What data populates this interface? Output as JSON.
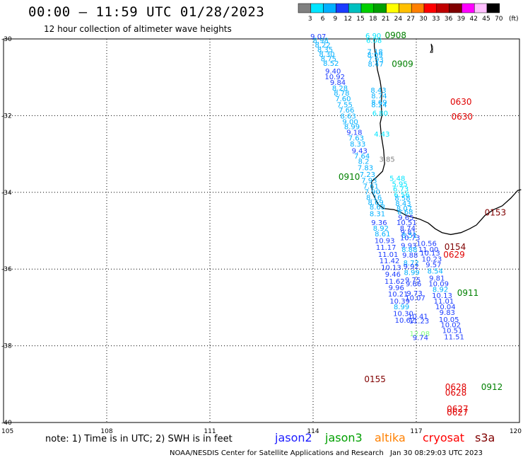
{
  "header": {
    "title": "00:00 – 11:59 UTC 01/28/2023",
    "subtitle": "12 hour collection of altimeter wave heights"
  },
  "legend": {
    "ticks": [
      "3",
      "6",
      "9",
      "12",
      "15",
      "18",
      "21",
      "24",
      "27",
      "30",
      "33",
      "36",
      "39",
      "42",
      "45",
      "70"
    ],
    "unit": "(ft)",
    "colors": [
      "#808080",
      "#00e5ff",
      "#00b0ff",
      "#1c3cff",
      "#00c0c0",
      "#00d000",
      "#00a000",
      "#ffff00",
      "#ffc000",
      "#ff8000",
      "#ff0000",
      "#c00000",
      "#800000",
      "#ff00ff",
      "#ffc0ff",
      "#000000"
    ]
  },
  "axes": {
    "x_labels": [
      "105",
      "108",
      "111",
      "114",
      "117",
      "120"
    ],
    "y_labels": [
      "-30",
      "-32",
      "-34",
      "-36",
      "-38",
      "-40"
    ],
    "lon_range": [
      105,
      120
    ],
    "lat_range": [
      -40,
      -30
    ]
  },
  "footer": {
    "note": "note: 1) Time is in UTC; 2) SWH is in feet",
    "satellites": [
      {
        "name": "jason2",
        "color": "#1c1cff"
      },
      {
        "name": "jason3",
        "color": "#00a000"
      },
      {
        "name": "altika",
        "color": "#ff8000"
      },
      {
        "name": "cryosat",
        "color": "#ff0000"
      },
      {
        "name": "s3a",
        "color": "#800000"
      }
    ],
    "credit": "NOAA/NESDIS Center for Satellite Applications and Research",
    "timestamp": "Jan 30 08:29:03 UTC 2023"
  },
  "time_labels": [
    {
      "text": "0908",
      "lon": 116.4,
      "lat": -29.98,
      "color": "#008000"
    },
    {
      "text": "0909",
      "lon": 116.6,
      "lat": -30.73,
      "color": "#008000"
    },
    {
      "text": "0630",
      "lon": 118.3,
      "lat": -31.72,
      "color": "#e00000"
    },
    {
      "text": "0630",
      "lon": 118.33,
      "lat": -32.1,
      "color": "#e00000"
    },
    {
      "text": "0910",
      "lon": 115.05,
      "lat": -33.67,
      "color": "#008000"
    },
    {
      "text": "0153",
      "lon": 119.3,
      "lat": -34.6,
      "color": "#800000"
    },
    {
      "text": "0154",
      "lon": 118.13,
      "lat": -35.5,
      "color": "#800000"
    },
    {
      "text": "0629",
      "lon": 118.1,
      "lat": -35.7,
      "color": "#e00000"
    },
    {
      "text": "0911",
      "lon": 118.5,
      "lat": -36.7,
      "color": "#008000"
    },
    {
      "text": "0155",
      "lon": 115.8,
      "lat": -38.95,
      "color": "#800000"
    },
    {
      "text": "0912",
      "lon": 119.2,
      "lat": -39.15,
      "color": "#008000"
    },
    {
      "text": "0628",
      "lon": 118.15,
      "lat": -39.15,
      "color": "#e00000"
    },
    {
      "text": "0628",
      "lon": 118.15,
      "lat": -39.3,
      "color": "#e00000"
    },
    {
      "text": "0627",
      "lon": 118.2,
      "lat": -39.72,
      "color": "#e00000"
    },
    {
      "text": "0627",
      "lon": 118.2,
      "lat": -39.82,
      "color": "#e00000"
    }
  ],
  "observations": [
    {
      "v": "9.07",
      "lon": 114.15,
      "lat": -30.0,
      "c": "#1c3cff"
    },
    {
      "v": "8.98",
      "lon": 114.22,
      "lat": -30.1,
      "c": "#00b0ff"
    },
    {
      "v": "8.22",
      "lon": 114.28,
      "lat": -30.22,
      "c": "#00b0ff"
    },
    {
      "v": "8.35",
      "lon": 114.35,
      "lat": -30.34,
      "c": "#00b0ff"
    },
    {
      "v": "8.30",
      "lon": 114.4,
      "lat": -30.46,
      "c": "#00b0ff"
    },
    {
      "v": "8.75",
      "lon": 114.45,
      "lat": -30.58,
      "c": "#00b0ff"
    },
    {
      "v": "8.52",
      "lon": 114.52,
      "lat": -30.7,
      "c": "#00b0ff"
    },
    {
      "v": "9.40",
      "lon": 114.58,
      "lat": -30.9,
      "c": "#1c3cff"
    },
    {
      "v": "10.92",
      "lon": 114.63,
      "lat": -31.05,
      "c": "#1c3cff"
    },
    {
      "v": "9.84",
      "lon": 114.72,
      "lat": -31.2,
      "c": "#1c3cff"
    },
    {
      "v": "8.28",
      "lon": 114.78,
      "lat": -31.35,
      "c": "#00b0ff"
    },
    {
      "v": "8.78",
      "lon": 114.83,
      "lat": -31.48,
      "c": "#00b0ff"
    },
    {
      "v": "7.60",
      "lon": 114.87,
      "lat": -31.62,
      "c": "#00b0ff"
    },
    {
      "v": "7.55",
      "lon": 114.92,
      "lat": -31.78,
      "c": "#00b0ff"
    },
    {
      "v": "7.66",
      "lon": 114.97,
      "lat": -31.92,
      "c": "#00b0ff"
    },
    {
      "v": "8.63",
      "lon": 115.02,
      "lat": -32.08,
      "c": "#00b0ff"
    },
    {
      "v": "9.00",
      "lon": 115.08,
      "lat": -32.22,
      "c": "#00b0ff"
    },
    {
      "v": "8.99",
      "lon": 115.13,
      "lat": -32.35,
      "c": "#00b0ff"
    },
    {
      "v": "9.18",
      "lon": 115.2,
      "lat": -32.5,
      "c": "#1c3cff"
    },
    {
      "v": "7.63",
      "lon": 115.25,
      "lat": -32.65,
      "c": "#00b0ff"
    },
    {
      "v": "8.33",
      "lon": 115.3,
      "lat": -32.8,
      "c": "#00b0ff"
    },
    {
      "v": "9.43",
      "lon": 115.35,
      "lat": -32.98,
      "c": "#1c3cff"
    },
    {
      "v": "7.64",
      "lon": 115.42,
      "lat": -33.12,
      "c": "#00b0ff"
    },
    {
      "v": "8.2",
      "lon": 115.47,
      "lat": -33.26,
      "c": "#00b0ff"
    },
    {
      "v": "7.83",
      "lon": 115.52,
      "lat": -33.42,
      "c": "#00b0ff"
    },
    {
      "v": "7.23",
      "lon": 115.58,
      "lat": -33.6,
      "c": "#00b0ff"
    },
    {
      "v": "7.93",
      "lon": 115.63,
      "lat": -33.75,
      "c": "#00b0ff"
    },
    {
      "v": "7.61",
      "lon": 115.68,
      "lat": -33.9,
      "c": "#00b0ff"
    },
    {
      "v": "7.90",
      "lon": 115.72,
      "lat": -34.05,
      "c": "#00b0ff"
    },
    {
      "v": "8.16",
      "lon": 115.77,
      "lat": -34.2,
      "c": "#00b0ff"
    },
    {
      "v": "8.69",
      "lon": 115.82,
      "lat": -34.33,
      "c": "#00b0ff"
    },
    {
      "v": "8.68",
      "lon": 115.87,
      "lat": -34.45,
      "c": "#00b0ff"
    },
    {
      "v": "8.31",
      "lon": 115.87,
      "lat": -34.62,
      "c": "#00b0ff"
    },
    {
      "v": "9.36",
      "lon": 115.92,
      "lat": -34.85,
      "c": "#1c3cff"
    },
    {
      "v": "8.92",
      "lon": 115.97,
      "lat": -35.0,
      "c": "#00b0ff"
    },
    {
      "v": "8.61",
      "lon": 116.02,
      "lat": -35.15,
      "c": "#00b0ff"
    },
    {
      "v": "10.93",
      "lon": 116.08,
      "lat": -35.32,
      "c": "#1c3cff"
    },
    {
      "v": "11.17",
      "lon": 116.12,
      "lat": -35.5,
      "c": "#1c3cff"
    },
    {
      "v": "11.01",
      "lon": 116.18,
      "lat": -35.68,
      "c": "#1c3cff"
    },
    {
      "v": "11.42",
      "lon": 116.22,
      "lat": -35.85,
      "c": "#1c3cff"
    },
    {
      "v": "10.13",
      "lon": 116.27,
      "lat": -36.02,
      "c": "#1c3cff"
    },
    {
      "v": "9.46",
      "lon": 116.32,
      "lat": -36.2,
      "c": "#1c3cff"
    },
    {
      "v": "11.62",
      "lon": 116.37,
      "lat": -36.38,
      "c": "#1c3cff"
    },
    {
      "v": "9.96",
      "lon": 116.42,
      "lat": -36.55,
      "c": "#1c3cff"
    },
    {
      "v": "10.21",
      "lon": 116.47,
      "lat": -36.72,
      "c": "#1c3cff"
    },
    {
      "v": "10.39",
      "lon": 116.52,
      "lat": -36.9,
      "c": "#1c3cff"
    },
    {
      "v": "8.99",
      "lon": 116.57,
      "lat": -37.05,
      "c": "#00b0ff"
    },
    {
      "v": "10.30",
      "lon": 116.62,
      "lat": -37.22,
      "c": "#1c3cff"
    },
    {
      "v": "10.62",
      "lon": 116.67,
      "lat": -37.4,
      "c": "#1c3cff"
    },
    {
      "v": "6.90",
      "lon": 115.75,
      "lat": -29.98,
      "c": "#00e5ff"
    },
    {
      "v": "6.08",
      "lon": 115.77,
      "lat": -30.1,
      "c": "#00e5ff"
    },
    {
      "v": "7.18",
      "lon": 115.8,
      "lat": -30.4,
      "c": "#00b0ff"
    },
    {
      "v": "8.09",
      "lon": 115.8,
      "lat": -30.48,
      "c": "#00b0ff"
    },
    {
      "v": "7.93",
      "lon": 115.82,
      "lat": -30.6,
      "c": "#00b0ff"
    },
    {
      "v": "8.47",
      "lon": 115.82,
      "lat": -30.72,
      "c": "#00b0ff"
    },
    {
      "v": "8.43",
      "lon": 115.9,
      "lat": -31.4,
      "c": "#00b0ff"
    },
    {
      "v": "8.74",
      "lon": 115.92,
      "lat": -31.55,
      "c": "#00b0ff"
    },
    {
      "v": "8.69",
      "lon": 115.92,
      "lat": -31.72,
      "c": "#00b0ff"
    },
    {
      "v": "8.24",
      "lon": 115.92,
      "lat": -31.78,
      "c": "#00b0ff"
    },
    {
      "v": "6.80",
      "lon": 115.95,
      "lat": -32.0,
      "c": "#00e5ff"
    },
    {
      "v": "4.43",
      "lon": 116.0,
      "lat": -32.55,
      "c": "#00e5ff"
    },
    {
      "v": "3.85",
      "lon": 116.15,
      "lat": -33.2,
      "c": "#808080"
    },
    {
      "v": "5.48",
      "lon": 116.45,
      "lat": -33.7,
      "c": "#00e5ff"
    },
    {
      "v": "5.95",
      "lon": 116.52,
      "lat": -33.85,
      "c": "#00e5ff"
    },
    {
      "v": "6.73",
      "lon": 116.55,
      "lat": -33.98,
      "c": "#00e5ff"
    },
    {
      "v": "6.56",
      "lon": 116.58,
      "lat": -34.12,
      "c": "#00e5ff"
    },
    {
      "v": "8.58",
      "lon": 116.6,
      "lat": -34.22,
      "c": "#00b0ff"
    },
    {
      "v": "8.43",
      "lon": 116.62,
      "lat": -34.35,
      "c": "#00b0ff"
    },
    {
      "v": "8.07",
      "lon": 116.65,
      "lat": -34.48,
      "c": "#00b0ff"
    },
    {
      "v": "8.68",
      "lon": 116.68,
      "lat": -34.58,
      "c": "#00b0ff"
    },
    {
      "v": "9.65",
      "lon": 116.7,
      "lat": -34.72,
      "c": "#1c3cff"
    },
    {
      "v": "10.51",
      "lon": 116.72,
      "lat": -34.85,
      "c": "#1c3cff"
    },
    {
      "v": "8.74",
      "lon": 116.75,
      "lat": -35.0,
      "c": "#1c3cff"
    },
    {
      "v": "9.81",
      "lon": 116.77,
      "lat": -35.1,
      "c": "#1c3cff"
    },
    {
      "v": "8.51",
      "lon": 116.8,
      "lat": -35.18,
      "c": "#00b0ff"
    },
    {
      "v": "10.73",
      "lon": 116.82,
      "lat": -35.25,
      "c": "#1c3cff"
    },
    {
      "v": "9.93",
      "lon": 116.78,
      "lat": -35.45,
      "c": "#1c3cff"
    },
    {
      "v": "8.88",
      "lon": 116.8,
      "lat": -35.55,
      "c": "#00b0ff"
    },
    {
      "v": "9.88",
      "lon": 116.82,
      "lat": -35.7,
      "c": "#1c3cff"
    },
    {
      "v": "8.72",
      "lon": 116.85,
      "lat": -35.9,
      "c": "#00b0ff"
    },
    {
      "v": "9.92",
      "lon": 116.85,
      "lat": -36.0,
      "c": "#1c3cff"
    },
    {
      "v": "8.99",
      "lon": 116.87,
      "lat": -36.15,
      "c": "#00b0ff"
    },
    {
      "v": "9.75",
      "lon": 116.9,
      "lat": -36.35,
      "c": "#1c3cff"
    },
    {
      "v": "9.66",
      "lon": 116.92,
      "lat": -36.45,
      "c": "#1c3cff"
    },
    {
      "v": "9.73",
      "lon": 116.95,
      "lat": -36.7,
      "c": "#1c3cff"
    },
    {
      "v": "10.07",
      "lon": 116.97,
      "lat": -36.82,
      "c": "#1c3cff"
    },
    {
      "v": "10.41",
      "lon": 117.05,
      "lat": -37.3,
      "c": "#1c3cff"
    },
    {
      "v": "11.23",
      "lon": 117.08,
      "lat": -37.42,
      "c": "#1c3cff"
    },
    {
      "v": "12.08",
      "lon": 117.1,
      "lat": -37.75,
      "c": "#7fff7f"
    },
    {
      "v": "9.74",
      "lon": 117.12,
      "lat": -37.85,
      "c": "#1c3cff"
    },
    {
      "v": "10.56",
      "lon": 117.3,
      "lat": -35.4,
      "c": "#1c3cff"
    },
    {
      "v": "11.00",
      "lon": 117.35,
      "lat": -35.55,
      "c": "#1c3cff"
    },
    {
      "v": "10.13",
      "lon": 117.4,
      "lat": -35.65,
      "c": "#1c3cff"
    },
    {
      "v": "10.23",
      "lon": 117.45,
      "lat": -35.8,
      "c": "#1c3cff"
    },
    {
      "v": "9.57",
      "lon": 117.5,
      "lat": -35.95,
      "c": "#1c3cff"
    },
    {
      "v": "8.54",
      "lon": 117.55,
      "lat": -36.12,
      "c": "#00b0ff"
    },
    {
      "v": "9.81",
      "lon": 117.6,
      "lat": -36.3,
      "c": "#1c3cff"
    },
    {
      "v": "10.09",
      "lon": 117.65,
      "lat": -36.45,
      "c": "#1c3cff"
    },
    {
      "v": "8.92",
      "lon": 117.7,
      "lat": -36.6,
      "c": "#00b0ff"
    },
    {
      "v": "10.13",
      "lon": 117.75,
      "lat": -36.75,
      "c": "#1c3cff"
    },
    {
      "v": "11.01",
      "lon": 117.8,
      "lat": -36.9,
      "c": "#1c3cff"
    },
    {
      "v": "10.04",
      "lon": 117.85,
      "lat": -37.05,
      "c": "#1c3cff"
    },
    {
      "v": "9.83",
      "lon": 117.9,
      "lat": -37.2,
      "c": "#1c3cff"
    },
    {
      "v": "10.05",
      "lon": 117.95,
      "lat": -37.38,
      "c": "#1c3cff"
    },
    {
      "v": "10.02",
      "lon": 118.0,
      "lat": -37.52,
      "c": "#1c3cff"
    },
    {
      "v": "10.51",
      "lon": 118.05,
      "lat": -37.67,
      "c": "#1c3cff"
    },
    {
      "v": "11.51",
      "lon": 118.1,
      "lat": -37.83,
      "c": "#1c3cff"
    }
  ]
}
